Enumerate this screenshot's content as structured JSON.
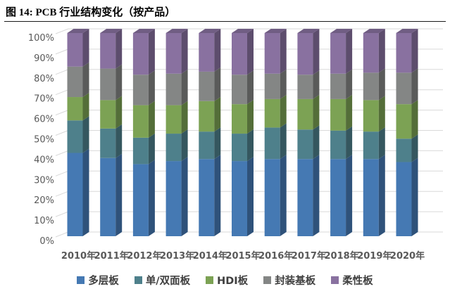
{
  "figure": {
    "title": "图 14:  PCB 行业结构变化（按产品）"
  },
  "chart_data": {
    "type": "bar",
    "variant": "3d-100-percent-stacked-column",
    "title": "PCB 行业结构变化（按产品）",
    "categories": [
      "2010年",
      "2011年",
      "2012年",
      "2013年",
      "2014年",
      "2015年",
      "2016年",
      "2017年",
      "2018年",
      "2019年",
      "2020年"
    ],
    "series": [
      {
        "name": "多层板",
        "color": "#4579B3",
        "values": [
          41.0,
          38.5,
          35.5,
          37.0,
          38.0,
          37.0,
          38.0,
          38.0,
          38.0,
          38.0,
          36.5
        ]
      },
      {
        "name": "单/双面板",
        "color": "#4E808B",
        "values": [
          16.0,
          14.5,
          13.0,
          13.5,
          13.5,
          13.5,
          15.5,
          14.5,
          14.0,
          13.5,
          11.5
        ]
      },
      {
        "name": "HDI板",
        "color": "#7CA254",
        "values": [
          11.5,
          14.0,
          16.0,
          14.0,
          15.0,
          14.5,
          14.0,
          15.0,
          15.5,
          15.5,
          17.0
        ]
      },
      {
        "name": "封装基板",
        "color": "#848685",
        "values": [
          15.0,
          15.5,
          15.0,
          15.5,
          14.5,
          14.5,
          12.5,
          12.0,
          12.5,
          13.5,
          15.5
        ]
      },
      {
        "name": "柔性板",
        "color": "#8971A0",
        "values": [
          16.5,
          17.5,
          20.5,
          20.0,
          19.0,
          20.5,
          20.0,
          20.5,
          20.0,
          19.5,
          19.5
        ]
      }
    ],
    "units": "percent",
    "ylim": [
      0,
      100
    ],
    "y_ticks": [
      "0%",
      "10%",
      "20%",
      "30%",
      "40%",
      "50%",
      "60%",
      "70%",
      "80%",
      "90%",
      "100%"
    ],
    "grid": true,
    "legend_position": "bottom",
    "axis_text_color": "#595959",
    "gridline_color": "#D9D9D9"
  }
}
